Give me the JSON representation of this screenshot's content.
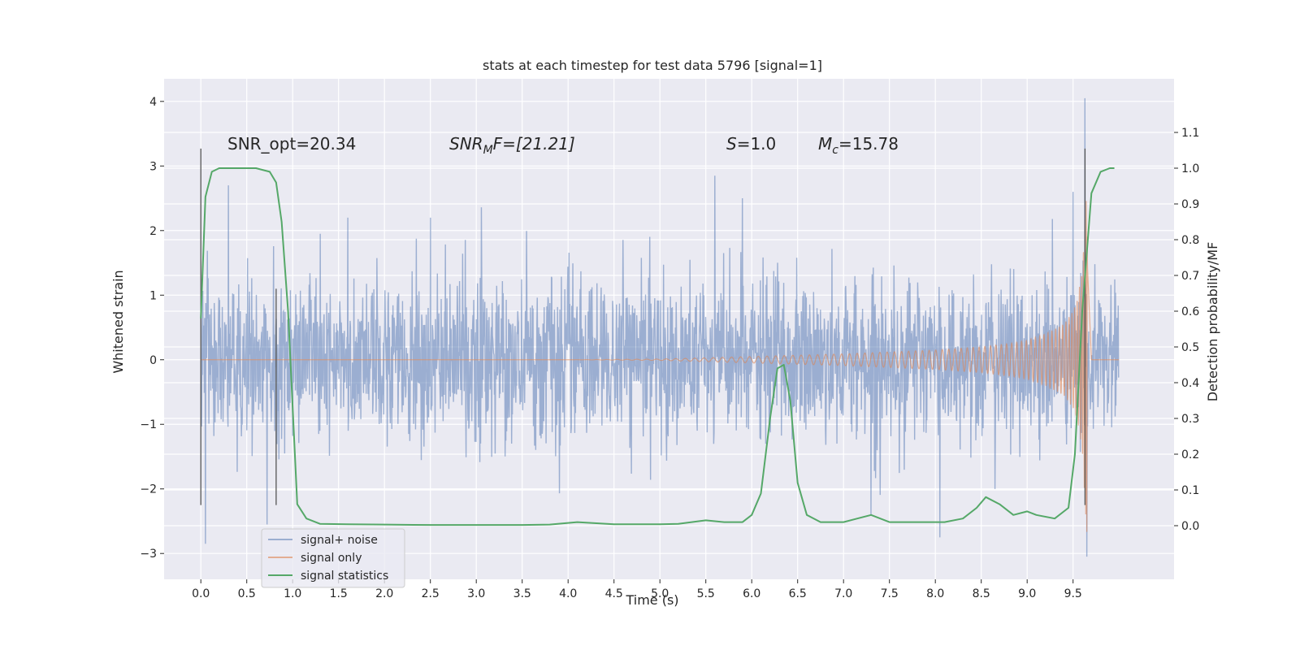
{
  "chart_data": {
    "type": "line",
    "title": "stats at each timestep for test data 5796 [signal=1]",
    "xlabel": "Time (s)",
    "ylabel": "Whitened strain",
    "y2label": "Detection probability/MF",
    "xlim": [
      -0.4,
      10.6
    ],
    "ylim": [
      -3.4,
      4.35
    ],
    "y2lim": [
      -0.15,
      1.25
    ],
    "xticks": [
      "0.0",
      "0.5",
      "1.0",
      "1.5",
      "2.0",
      "2.5",
      "3.0",
      "3.5",
      "4.0",
      "4.5",
      "5.0",
      "5.5",
      "6.0",
      "6.5",
      "7.0",
      "7.5",
      "8.0",
      "8.5",
      "9.0",
      "9.5"
    ],
    "yticks": [
      "4",
      "3",
      "2",
      "1",
      "0",
      "−1",
      "−2",
      "−3"
    ],
    "y2ticks": [
      "1.1",
      "1.0",
      "0.9",
      "0.8",
      "0.7",
      "0.6",
      "0.5",
      "0.4",
      "0.3",
      "0.2",
      "0.1",
      "0.0"
    ],
    "grid": true,
    "legend_position": "lower-left",
    "annotations": {
      "snr_opt": "SNR_opt=20.34",
      "snr_mf_label": "SNR",
      "snr_mf_sub": "M",
      "snr_mf_value": "F=[21.21]",
      "s_label": "S",
      "s_value": "=1.0",
      "mc_label": "M",
      "mc_sub": "c",
      "mc_value": "=15.78"
    },
    "series": [
      {
        "name": "signal+ noise",
        "color": "#4c72b0",
        "x_range": [
          0.0,
          10.0
        ],
        "envelope": "noise, typical amplitude approx ±1.3, peaks up to 4.05 near 9.63 s, minimum -3.05 near 9.65 s",
        "peaks": [
          [
            0.05,
            -2.85
          ],
          [
            0.3,
            2.7
          ],
          [
            0.72,
            -2.55
          ],
          [
            1.3,
            1.95
          ],
          [
            1.6,
            2.2
          ],
          [
            2.5,
            2.2
          ],
          [
            5.6,
            2.85
          ],
          [
            5.9,
            2.5
          ],
          [
            7.3,
            -2.4
          ],
          [
            8.05,
            -2.75
          ],
          [
            9.5,
            2.6
          ],
          [
            9.63,
            4.05
          ],
          [
            9.65,
            -3.05
          ]
        ]
      },
      {
        "name": "signal only",
        "color": "#dd8452",
        "x": [
          0.0,
          1.0,
          2.0,
          3.0,
          4.0,
          5.0,
          5.5,
          6.0,
          6.5,
          7.0,
          7.5,
          8.0,
          8.5,
          8.8,
          9.0,
          9.2,
          9.4,
          9.5,
          9.55,
          9.6,
          9.63,
          9.65,
          9.7,
          10.0
        ],
        "amplitude": [
          0.0,
          0.0,
          0.0,
          0.0,
          0.0,
          0.01,
          0.03,
          0.05,
          0.07,
          0.09,
          0.12,
          0.15,
          0.2,
          0.25,
          0.3,
          0.4,
          0.55,
          0.75,
          0.95,
          1.4,
          2.2,
          2.7,
          0.0,
          0.0
        ]
      },
      {
        "name": "signal statistics",
        "color": "#55a868",
        "axis": "right",
        "x": [
          0.0,
          0.05,
          0.12,
          0.2,
          0.4,
          0.6,
          0.75,
          0.82,
          0.88,
          0.95,
          1.05,
          1.15,
          1.3,
          1.6,
          2.0,
          2.5,
          3.0,
          3.5,
          3.8,
          4.1,
          4.5,
          5.0,
          5.2,
          5.5,
          5.7,
          5.9,
          6.0,
          6.1,
          6.2,
          6.28,
          6.35,
          6.42,
          6.5,
          6.6,
          6.75,
          7.0,
          7.15,
          7.3,
          7.5,
          7.8,
          8.1,
          8.3,
          8.45,
          8.55,
          8.7,
          8.85,
          9.0,
          9.1,
          9.3,
          9.45,
          9.52,
          9.6,
          9.7,
          9.8,
          9.9,
          9.95
        ],
        "y": [
          0.58,
          0.92,
          0.99,
          1.0,
          1.0,
          1.0,
          0.99,
          0.96,
          0.85,
          0.6,
          0.06,
          0.02,
          0.005,
          0.004,
          0.003,
          0.002,
          0.002,
          0.002,
          0.003,
          0.01,
          0.004,
          0.004,
          0.005,
          0.015,
          0.01,
          0.01,
          0.03,
          0.09,
          0.3,
          0.44,
          0.45,
          0.35,
          0.12,
          0.03,
          0.01,
          0.01,
          0.02,
          0.03,
          0.01,
          0.01,
          0.01,
          0.02,
          0.05,
          0.08,
          0.06,
          0.03,
          0.04,
          0.03,
          0.02,
          0.05,
          0.2,
          0.6,
          0.93,
          0.99,
          1.0,
          1.0
        ]
      }
    ],
    "vertical_markers": [
      {
        "x": 0.0,
        "y_bottom": -2.25,
        "y_top": 3.27
      },
      {
        "x": 0.82,
        "y_bottom": -2.25,
        "y_top": 1.1
      },
      {
        "x": 9.63,
        "y_bottom": -2.25,
        "y_top": 3.27
      }
    ]
  }
}
